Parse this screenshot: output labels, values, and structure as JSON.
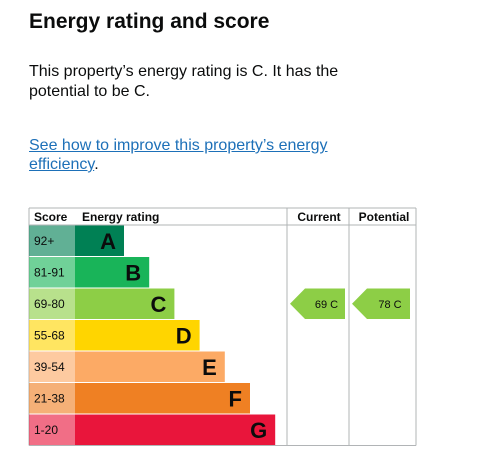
{
  "heading": "Energy rating and score",
  "summary": "This property’s energy rating is C. It has the potential to be C.",
  "improve_link": {
    "text": "See how to improve this property’s energy efficiency",
    "suffix": "."
  },
  "colors": {
    "A": "#008054",
    "B": "#19b459",
    "C": "#8dce46",
    "D": "#ffd500",
    "E": "#fcaa65",
    "F": "#ef8023",
    "G": "#e9153b"
  },
  "chart_data": {
    "type": "table",
    "headers": {
      "score": "Score",
      "rating": "Energy rating",
      "current": "Current",
      "potential": "Potential"
    },
    "bands": [
      {
        "score": "92+",
        "letter": "A",
        "color": "#008054"
      },
      {
        "score": "81-91",
        "letter": "B",
        "color": "#19b459"
      },
      {
        "score": "69-80",
        "letter": "C",
        "color": "#8dce46"
      },
      {
        "score": "55-68",
        "letter": "D",
        "color": "#ffd500"
      },
      {
        "score": "39-54",
        "letter": "E",
        "color": "#fcaa65"
      },
      {
        "score": "21-38",
        "letter": "F",
        "color": "#ef8023"
      },
      {
        "score": "1-20",
        "letter": "G",
        "color": "#e9153b"
      }
    ],
    "current": {
      "score": 69,
      "letter": "C",
      "label": "69  C"
    },
    "potential": {
      "score": 78,
      "letter": "C",
      "label": "78  C"
    }
  }
}
